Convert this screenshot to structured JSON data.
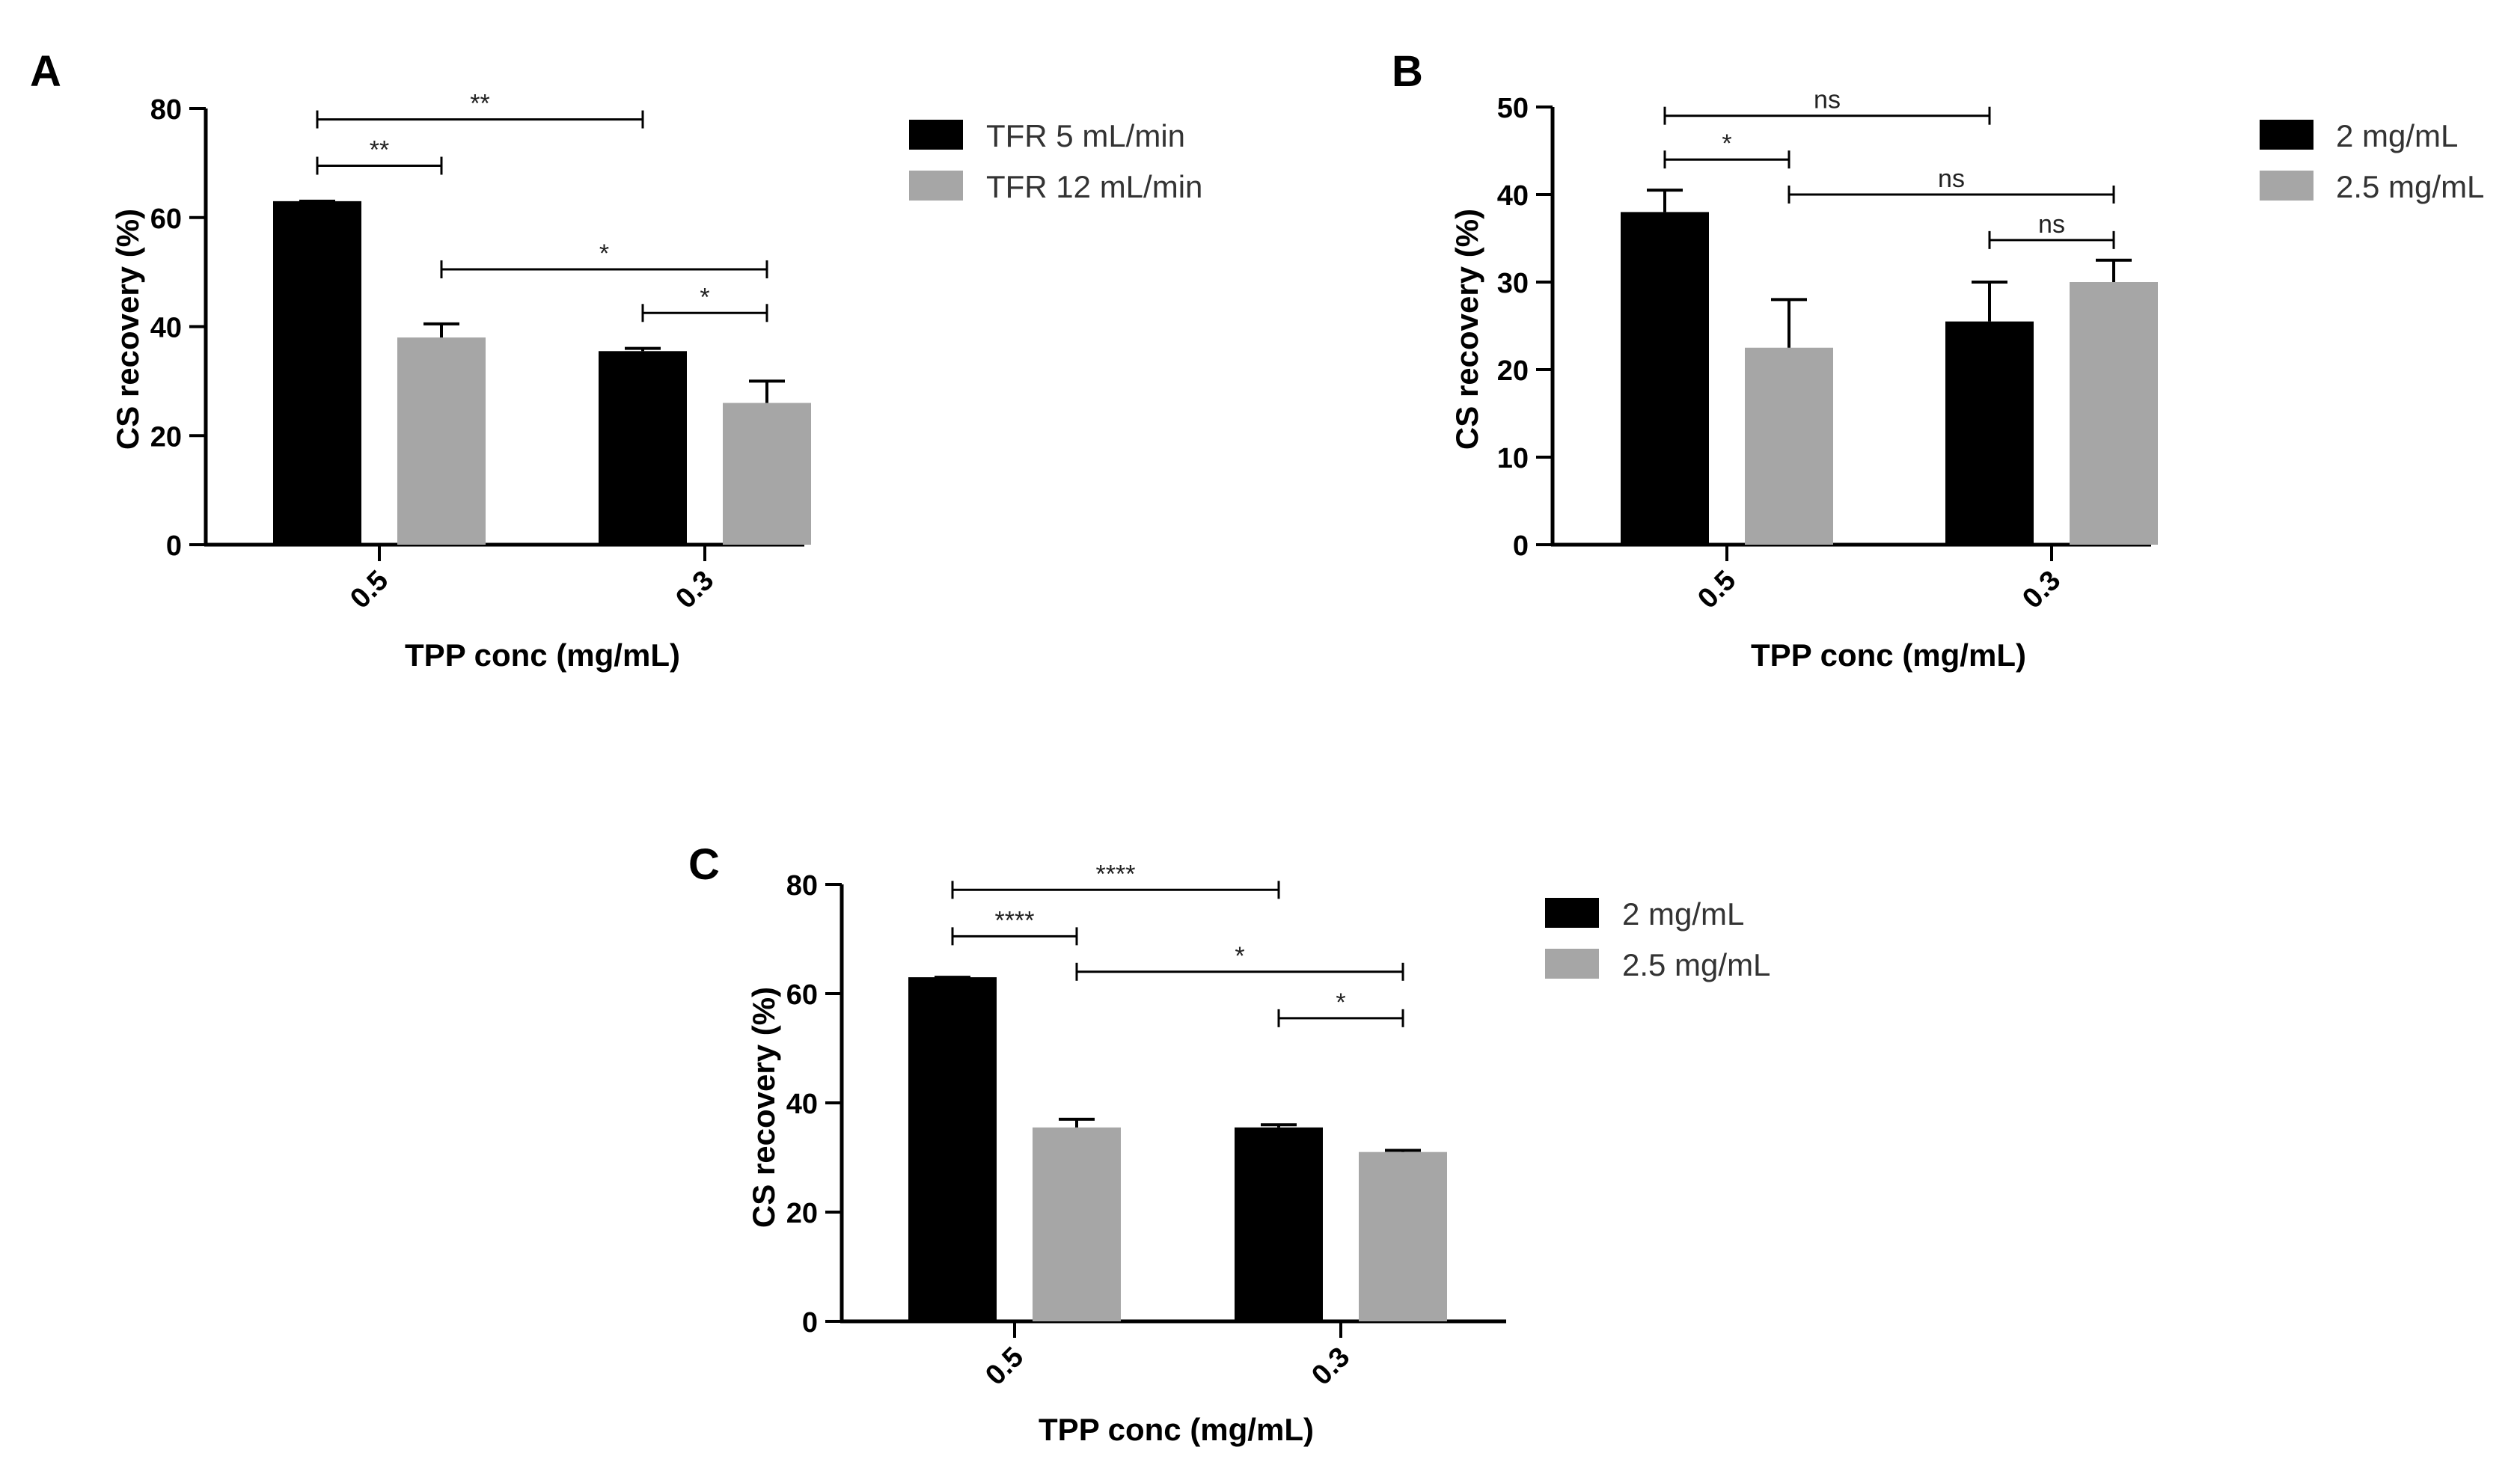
{
  "chart_data": [
    {
      "type": "bar",
      "panel_label": "A",
      "xlabel": "TPP conc (mg/mL)",
      "ylabel": "CS recovery (%)",
      "categories": [
        "0.5",
        "0.3"
      ],
      "ylim": [
        0,
        80
      ],
      "yticks": [
        "0",
        "20",
        "40",
        "60",
        "80"
      ],
      "series": [
        {
          "name": "TFR 5 mL/min",
          "color": "#000000",
          "values": [
            63,
            35.5
          ],
          "errors": [
            0,
            0.5
          ]
        },
        {
          "name": "TFR 12 mL/min",
          "color": "#a6a6a6",
          "values": [
            38,
            26
          ],
          "errors": [
            2.5,
            4
          ]
        }
      ],
      "significance": [
        {
          "from": [
            0,
            0
          ],
          "to": [
            1,
            0
          ],
          "label": "**",
          "y": 78
        },
        {
          "from": [
            0,
            0
          ],
          "to": [
            0,
            1
          ],
          "label": "**",
          "y": 69.5
        },
        {
          "from": [
            0,
            1
          ],
          "to": [
            1,
            1
          ],
          "label": "*",
          "y": 50.5
        },
        {
          "from": [
            1,
            0
          ],
          "to": [
            1,
            1
          ],
          "label": "*",
          "y": 42.5
        }
      ]
    },
    {
      "type": "bar",
      "panel_label": "B",
      "xlabel": "TPP conc (mg/mL)",
      "ylabel": "CS recovery (%)",
      "categories": [
        "0.5",
        "0.3"
      ],
      "ylim": [
        0,
        50
      ],
      "yticks": [
        "0",
        "10",
        "20",
        "30",
        "40",
        "50"
      ],
      "series": [
        {
          "name": "2 mg/mL",
          "color": "#000000",
          "values": [
            38,
            25.5
          ],
          "errors": [
            2.5,
            4.5
          ]
        },
        {
          "name": "2.5 mg/mL",
          "color": "#a6a6a6",
          "values": [
            22.5,
            30
          ],
          "errors": [
            5.5,
            2.5
          ]
        }
      ],
      "significance": [
        {
          "from": [
            0,
            0
          ],
          "to": [
            1,
            0
          ],
          "label": "ns",
          "y": 49
        },
        {
          "from": [
            0,
            0
          ],
          "to": [
            0,
            1
          ],
          "label": "*",
          "y": 44
        },
        {
          "from": [
            0,
            1
          ],
          "to": [
            1,
            1
          ],
          "label": "ns",
          "y": 40
        },
        {
          "from": [
            1,
            0
          ],
          "to": [
            1,
            1
          ],
          "label": "ns",
          "y": 34.8
        }
      ]
    },
    {
      "type": "bar",
      "panel_label": "C",
      "xlabel": "TPP conc (mg/mL)",
      "ylabel": "CS recovery (%)",
      "categories": [
        "0.5",
        "0.3"
      ],
      "ylim": [
        0,
        80
      ],
      "yticks": [
        "0",
        "20",
        "40",
        "60",
        "80"
      ],
      "series": [
        {
          "name": "2 mg/mL",
          "color": "#000000",
          "values": [
            63,
            35.5
          ],
          "errors": [
            0,
            0.5
          ]
        },
        {
          "name": "2.5 mg/mL",
          "color": "#a6a6a6",
          "values": [
            35.5,
            31
          ],
          "errors": [
            1.5,
            0.3
          ]
        }
      ],
      "significance": [
        {
          "from": [
            0,
            0
          ],
          "to": [
            1,
            0
          ],
          "label": "****",
          "y": 79
        },
        {
          "from": [
            0,
            0
          ],
          "to": [
            0,
            1
          ],
          "label": "****",
          "y": 70.5
        },
        {
          "from": [
            0,
            1
          ],
          "to": [
            1,
            1
          ],
          "label": "*",
          "y": 64
        },
        {
          "from": [
            1,
            0
          ],
          "to": [
            1,
            1
          ],
          "label": "*",
          "y": 55.5
        }
      ]
    }
  ]
}
